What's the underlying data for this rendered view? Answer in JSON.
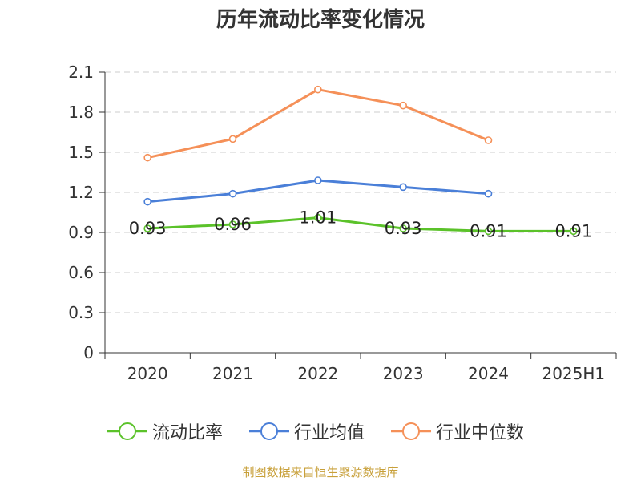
{
  "chart_data": {
    "type": "line",
    "title": "历年流动比率变化情况",
    "categories": [
      "2020",
      "2021",
      "2022",
      "2023",
      "2024",
      "2025H1"
    ],
    "ylim": [
      0,
      2.1
    ],
    "yticks": [
      "0",
      "0.3",
      "0.6",
      "0.9",
      "1.2",
      "1.5",
      "1.8",
      "2.1"
    ],
    "grid": true,
    "legend_position": "bottom",
    "series": [
      {
        "name": "流动比率",
        "color": "#5bc22a",
        "values": [
          0.93,
          0.96,
          1.01,
          0.93,
          0.91,
          0.91
        ],
        "labels": [
          "0.93",
          "0.96",
          "1.01",
          "0.93",
          "0.91",
          "0.91"
        ]
      },
      {
        "name": "行业均值",
        "color": "#4a7fd8",
        "values": [
          1.13,
          1.19,
          1.29,
          1.24,
          1.19,
          null
        ]
      },
      {
        "name": "行业中位数",
        "color": "#f59058",
        "values": [
          1.46,
          1.6,
          1.97,
          1.85,
          1.59,
          null
        ]
      }
    ]
  },
  "source": "制图数据来自恒生聚源数据库"
}
